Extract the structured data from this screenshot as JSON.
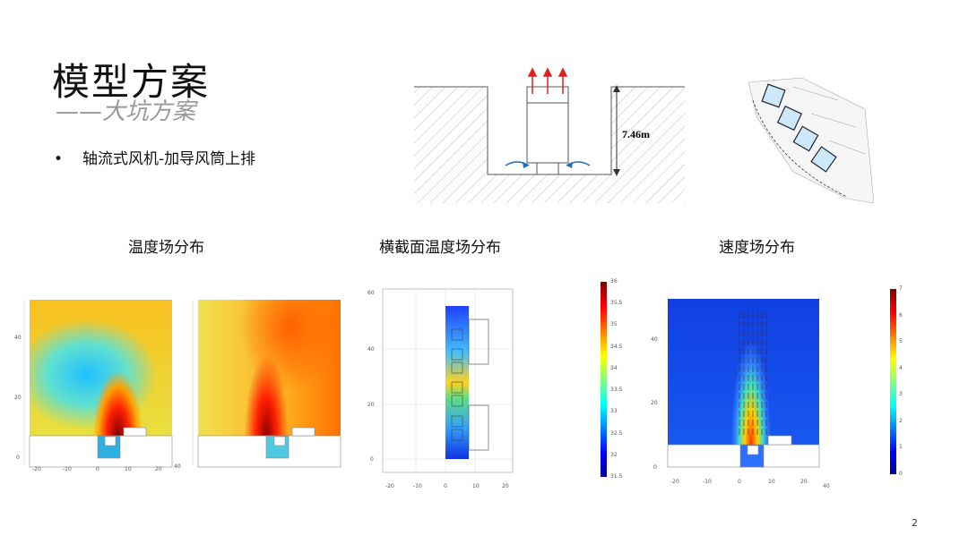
{
  "title": "模型方案",
  "subtitle": "——大坑方案",
  "bullet": "轴流式风机-加导风筒上排",
  "diagram": {
    "height_label": "7.46m"
  },
  "headings": [
    "温度场分布",
    "横截面温度场分布",
    "速度场分布"
  ],
  "plot_temp": {
    "x_ticks": [
      "-20",
      "-10",
      "0",
      "10",
      "20",
      "40"
    ],
    "y_ticks": [
      "40",
      "20",
      "0"
    ]
  },
  "plot_cross": {
    "x_ticks": [
      "-20",
      "-10",
      "0",
      "10",
      "20"
    ],
    "y_ticks": [
      "60",
      "40",
      "20",
      "0"
    ]
  },
  "colorbar_temp": {
    "ticks": [
      "36",
      "35.5",
      "35",
      "34.5",
      "34",
      "33.5",
      "33",
      "32.5",
      "32",
      "31.5"
    ]
  },
  "plot_vel": {
    "x_ticks": [
      "-20",
      "-10",
      "0",
      "10",
      "20",
      "40"
    ],
    "y_ticks": [
      "40",
      "20",
      "0"
    ]
  },
  "colorbar_vel": {
    "ticks": [
      "7",
      "6",
      "5",
      "4",
      "3",
      "2",
      "1",
      "0"
    ]
  },
  "colors": {
    "arrow_red": "#e02020",
    "arrow_blue": "#1a6fc0"
  },
  "page_number": "2"
}
